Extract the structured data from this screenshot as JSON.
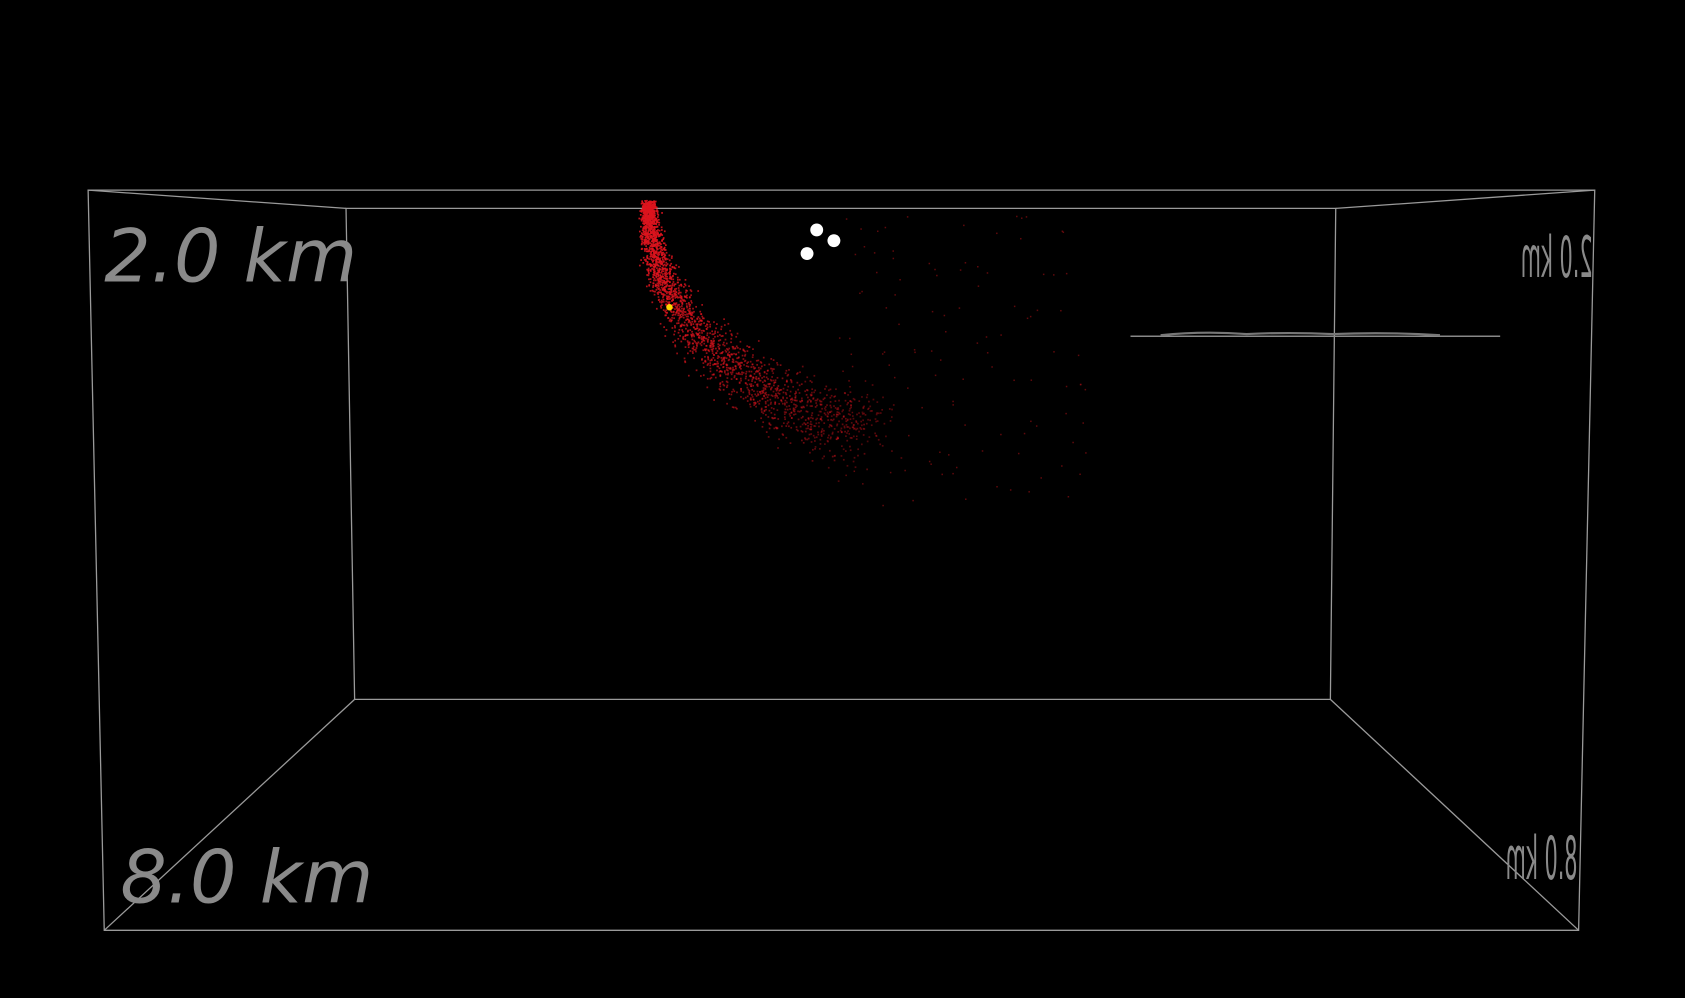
{
  "labels": {
    "near_top": "2.0 km",
    "near_bottom": "8.0 km",
    "far_top": "2.0 km",
    "far_bottom": "8.0 km"
  }
}
